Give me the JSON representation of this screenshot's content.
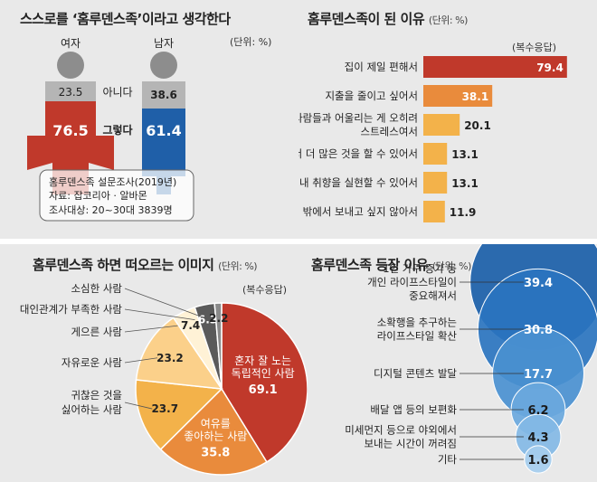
{
  "panel1": {
    "title": "스스로를 ‘홈루덴스족’이라고 생각한다",
    "unit": "(단위: %)",
    "female_label": "여자",
    "male_label": "남자",
    "row_no": "아니다",
    "row_yes": "그렇다",
    "female_no": "23.5",
    "female_yes": "76.5",
    "male_no": "38.6",
    "male_yes": "61.4",
    "source_line1": "홈루덴스족 설문조사(2019년)",
    "source_line2": "자료: 잡코리아 · 알바몬",
    "source_line3": "조사대상: 20~30대 3839명",
    "colors": {
      "female": "#c0392b",
      "male": "#1f5fa8",
      "no_band": "#b5b5b5",
      "head": "#8d8d8d"
    }
  },
  "panel2": {
    "title": "홈루덴스족이 된 이유",
    "unit": "(단위: %)",
    "note": "(복수응답)"
  },
  "panel3": {
    "title": "홈루덴스족 하면 떠오르는 이미지",
    "unit": "(단위: %)",
    "note": "(복수응답)"
  },
  "panel4": {
    "title": "홈루덴스족 등장 이유",
    "unit": "(단위: %)"
  },
  "chart_data": [
    {
      "type": "bar",
      "title": "스스로를 ‘홈루덴스족’이라고 생각한다",
      "categories": [
        "여자",
        "남자"
      ],
      "series": [
        {
          "name": "그렇다",
          "values": [
            76.5,
            61.4
          ]
        },
        {
          "name": "아니다",
          "values": [
            23.5,
            38.6
          ]
        }
      ]
    },
    {
      "type": "bar",
      "title": "홈루덴스족이 된 이유",
      "categories": [
        "집이 제일 편해서",
        "지출을 줄이고 싶어서",
        "사람들과 어울리는 게 오히려 스트레스여서",
        "집에서 더 많은 것을 할 수 있어서",
        "집에서는 내 취향을 실현할 수 있어서",
        "휴일까지 밖에서 보내고 싶지 않아서"
      ],
      "labels": [
        [
          "집이 제일 편해서"
        ],
        [
          "지출을 줄이고 싶어서"
        ],
        [
          "사람들과 어울리는 게 오히려",
          "스트레스여서"
        ],
        [
          "집에서 더 많은 것을 할 수 있어서"
        ],
        [
          "집에서는 내 취향을 실현할 수 있어서"
        ],
        [
          "휴일까지 밖에서 보내고 싶지 않아서"
        ]
      ],
      "values": [
        79.4,
        38.1,
        20.1,
        13.1,
        13.1,
        11.9
      ],
      "colors": [
        "#c0392b",
        "#e98b3c",
        "#f3b24a",
        "#f3b24a",
        "#f3b24a",
        "#f3b24a"
      ]
    },
    {
      "type": "pie",
      "title": "홈루덴스족 하면 떠오르는 이미지",
      "categories": [
        "혼자 잘 노는 독립적인 사람",
        "여유를 좋아하는 사람",
        "귀찮은 것을 싫어하는 사람",
        "자유로운 사람",
        "게으른 사람",
        "대인관계가 부족한 사람",
        "소심한 사람"
      ],
      "values": [
        69.1,
        35.8,
        23.7,
        23.2,
        7.4,
        6.3,
        2.2
      ],
      "colors": [
        "#c0392b",
        "#e98b3c",
        "#f3b24a",
        "#fbd08a",
        "#fff2d6",
        "#5a5a5a",
        "#8a8a8a"
      ]
    },
    {
      "type": "scatter",
      "title": "홈루덴스족 등장 이유",
      "categories": [
        "1인 가구 증가 등 개인 라이프스타일이 중요해져서",
        "소확행을 추구하는 라이프스타일 확산",
        "디지털 콘텐츠 발달",
        "배달 앱 등의 보편화",
        "미세먼지 등으로 야외에서 보내는 시간이 꺼려짐",
        "기타"
      ],
      "labels": [
        [
          "1인 가구 증가 등",
          "개인 라이프스타일이",
          "중요해져서"
        ],
        [
          "소확행을 추구하는",
          "라이프스타일 확산"
        ],
        [
          "디지털 콘텐츠 발달"
        ],
        [
          "배달 앱 등의 보편화"
        ],
        [
          "미세먼지 등으로 야외에서",
          "보내는 시간이 꺼려짐"
        ],
        [
          "기타"
        ]
      ],
      "values": [
        39.4,
        30.8,
        17.7,
        6.2,
        4.3,
        1.6
      ]
    }
  ]
}
